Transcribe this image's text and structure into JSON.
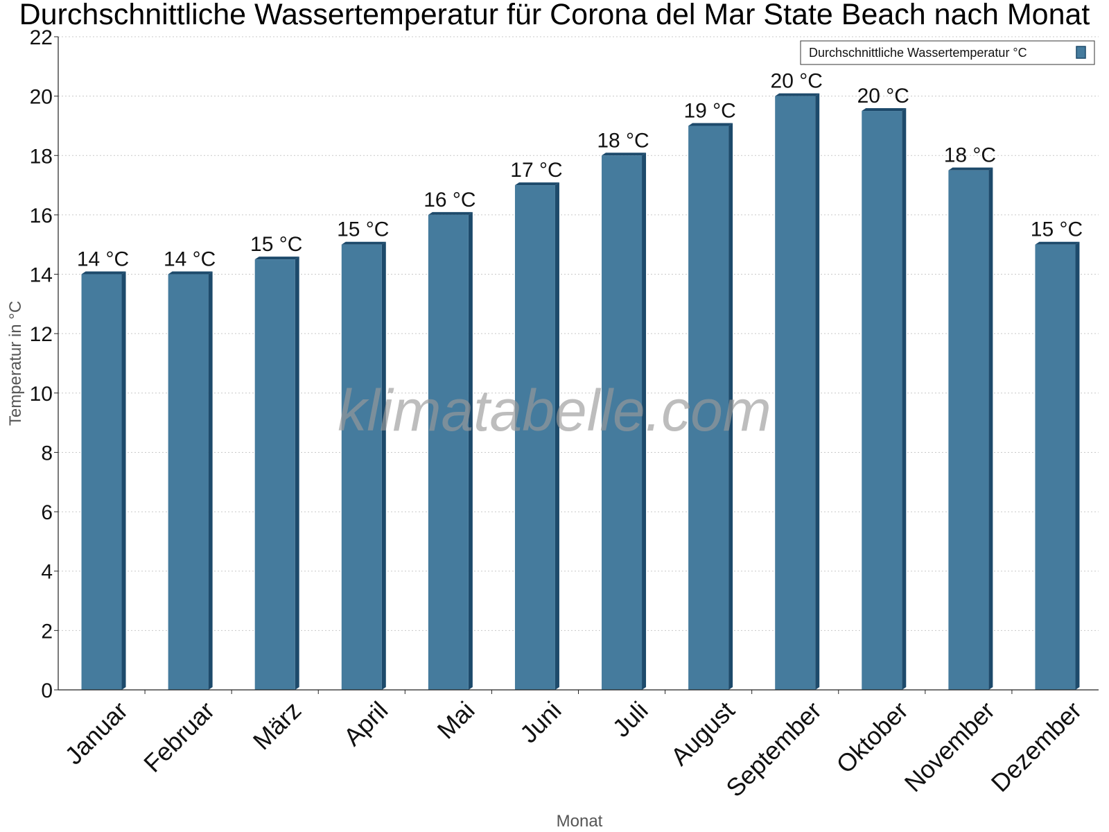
{
  "chart_data": {
    "type": "bar",
    "title": "Durchschnittliche Wassertemperatur für Corona del Mar State Beach nach Monat",
    "xlabel": "Monat",
    "ylabel": "Temperatur in °C",
    "ylim": [
      0,
      22
    ],
    "yticks": [
      "0",
      "2",
      "4",
      "6",
      "8",
      "10",
      "12",
      "14",
      "16",
      "18",
      "20",
      "22"
    ],
    "grid": true,
    "legend_position": "top-right",
    "categories": [
      "Januar",
      "Februar",
      "März",
      "April",
      "Mai",
      "Juni",
      "Juli",
      "August",
      "September",
      "Oktober",
      "November",
      "Dezember"
    ],
    "series": [
      {
        "name": "Durchschnittliche Wassertemperatur °C",
        "values": [
          14.0,
          14.0,
          14.5,
          15.0,
          16.0,
          17.0,
          18.0,
          19.0,
          20.0,
          19.5,
          17.5,
          15.0
        ],
        "labels": [
          "14 °C",
          "14 °C",
          "15 °C",
          "15 °C",
          "16 °C",
          "17 °C",
          "18 °C",
          "19 °C",
          "20 °C",
          "20 °C",
          "18 °C",
          "15 °C"
        ],
        "color": "#457b9d",
        "edge_color": "#1d4a6b"
      }
    ]
  },
  "watermark": "klimatabelle.com"
}
